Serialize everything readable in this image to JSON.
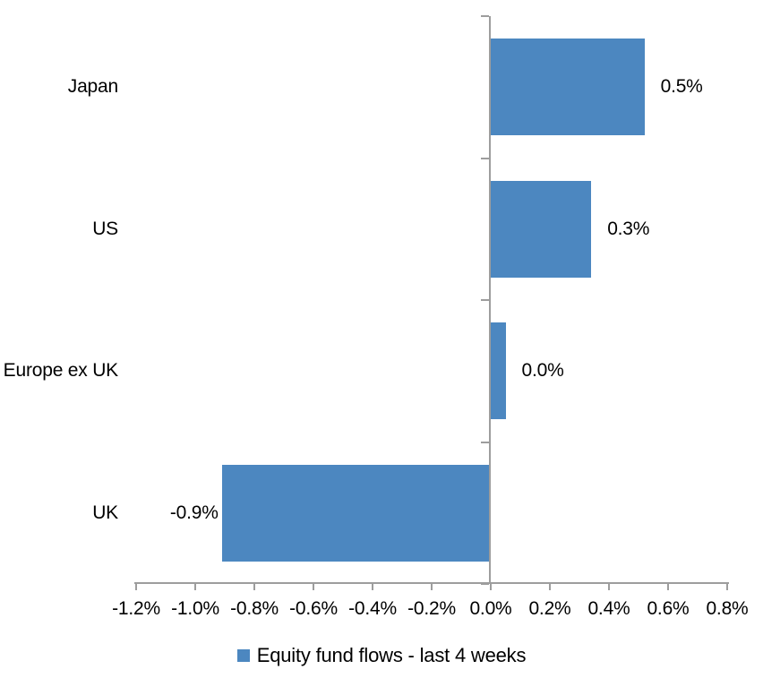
{
  "chart_data": {
    "type": "bar",
    "orientation": "horizontal",
    "title": "",
    "xlabel": "",
    "ylabel": "",
    "categories": [
      "Japan",
      "US",
      "Europe ex UK",
      "UK"
    ],
    "series": [
      {
        "name": "Equity fund flows - last 4 weeks",
        "values": [
          0.5,
          0.3,
          0.0,
          -0.9
        ],
        "values_exact_pct": [
          0.52,
          0.34,
          0.05,
          -0.91
        ],
        "data_labels": [
          "0.5%",
          "0.3%",
          "0.0%",
          "-0.9%"
        ]
      }
    ],
    "xlim": [
      -1.2,
      0.8
    ],
    "x_tick_labels": [
      "-1.2%",
      "-1.0%",
      "-0.8%",
      "-0.6%",
      "-0.4%",
      "-0.2%",
      "0.0%",
      "0.2%",
      "0.4%",
      "0.6%",
      "0.8%"
    ],
    "grid": false,
    "legend_position": "bottom",
    "colors": {
      "bar_fill": "#4C87C0",
      "axis_line": "#9D9D9D",
      "text": "#000000",
      "background": "#ffffff"
    }
  },
  "legend": {
    "label": "Equity fund flows - last 4 weeks",
    "swatch_color": "#4C87C0"
  }
}
